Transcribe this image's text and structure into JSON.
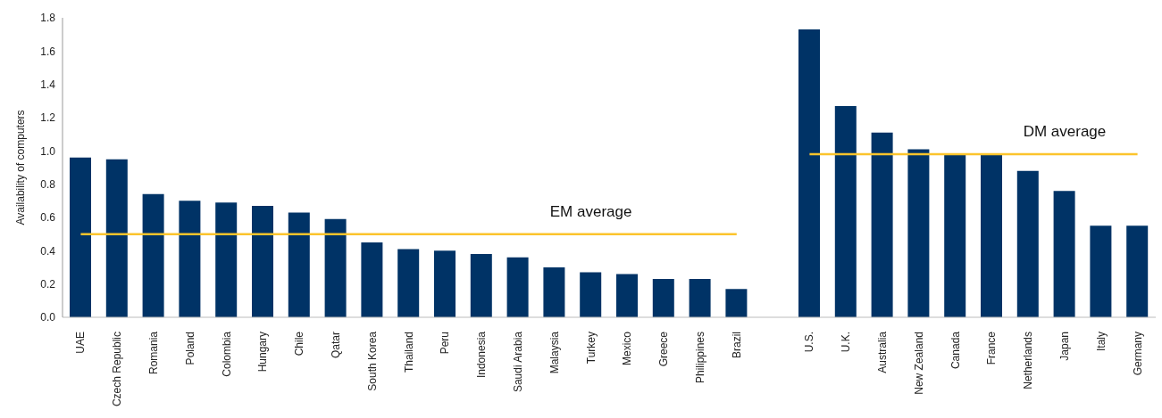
{
  "chart_data": {
    "type": "bar",
    "ylabel": "Availability of computers",
    "categories": [
      "UAE",
      "Czech Republic",
      "Romania",
      "Poland",
      "Colombia",
      "Hungary",
      "Chile",
      "Qatar",
      "South Korea",
      "Thailand",
      "Peru",
      "Indonesia",
      "Saudi Arabia",
      "Malaysia",
      "Turkey",
      "Mexico",
      "Greece",
      "Philippines",
      "Brazil",
      null,
      "U.S.",
      "U.K.",
      "Australia",
      "New Zealand",
      "Canada",
      "France",
      "Netherlands",
      "Japan",
      "Italy",
      "Germany"
    ],
    "series": [
      {
        "color": "#003366",
        "values": [
          0.96,
          0.95,
          0.74,
          0.7,
          0.69,
          0.67,
          0.63,
          0.59,
          0.45,
          0.41,
          0.4,
          0.38,
          0.36,
          0.3,
          0.27,
          0.26,
          0.23,
          0.23,
          0.17,
          null,
          1.73,
          1.27,
          1.11,
          1.01,
          0.98,
          0.98,
          0.88,
          0.76,
          0.55,
          0.55
        ]
      },
      {
        "type": "line",
        "name": "EM average",
        "color": "#fcc42c",
        "values": [
          0.5,
          0.5,
          0.5,
          0.5,
          0.5,
          0.5,
          0.5,
          0.5,
          0.5,
          0.5,
          0.5,
          0.5,
          0.5,
          0.5,
          0.5,
          0.5,
          0.5,
          0.5,
          0.5,
          null,
          null,
          null,
          null,
          null,
          null,
          null,
          null,
          null,
          null,
          null
        ]
      },
      {
        "type": "line",
        "name": "DM average",
        "color": "#fcc42c",
        "values": [
          null,
          null,
          null,
          null,
          null,
          null,
          null,
          null,
          null,
          null,
          null,
          null,
          null,
          null,
          null,
          null,
          null,
          null,
          null,
          null,
          0.98,
          0.98,
          0.98,
          0.98,
          0.98,
          0.98,
          0.98,
          0.98,
          0.98,
          0.98
        ]
      }
    ],
    "ylim": [
      0,
      1.8
    ],
    "yticks": [
      {
        "value": 0,
        "label": "0.0"
      },
      0.2,
      0.4,
      0.6,
      0.8,
      {
        "value": 1,
        "label": "1.0"
      },
      1.2,
      1.4,
      1.6,
      1.8
    ],
    "grid": false,
    "marker": "none",
    "line_style": "solid"
  }
}
